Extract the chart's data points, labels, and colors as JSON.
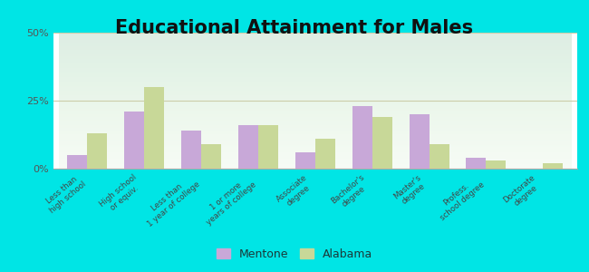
{
  "title": "Educational Attainment for Males",
  "categories": [
    "Less than\nhigh school",
    "High school\nor equiv.",
    "Less than\n1 year of college",
    "1 or more\nyears of college",
    "Associate\ndegree",
    "Bachelor's\ndegree",
    "Master's\ndegree",
    "Profess.\nschool degree",
    "Doctorate\ndegree"
  ],
  "mentone": [
    5,
    21,
    14,
    16,
    6,
    23,
    20,
    4,
    0
  ],
  "alabama": [
    13,
    30,
    9,
    16,
    11,
    19,
    9,
    3,
    2
  ],
  "mentone_color": "#c8a8d8",
  "alabama_color": "#c8d898",
  "background_color": "#00e5e5",
  "ylim": [
    0,
    50
  ],
  "yticks": [
    0,
    25,
    50
  ],
  "ytick_labels": [
    "0%",
    "25%",
    "50%"
  ],
  "bar_width": 0.35,
  "title_fontsize": 15,
  "legend_mentone": "Mentone",
  "legend_alabama": "Alabama"
}
